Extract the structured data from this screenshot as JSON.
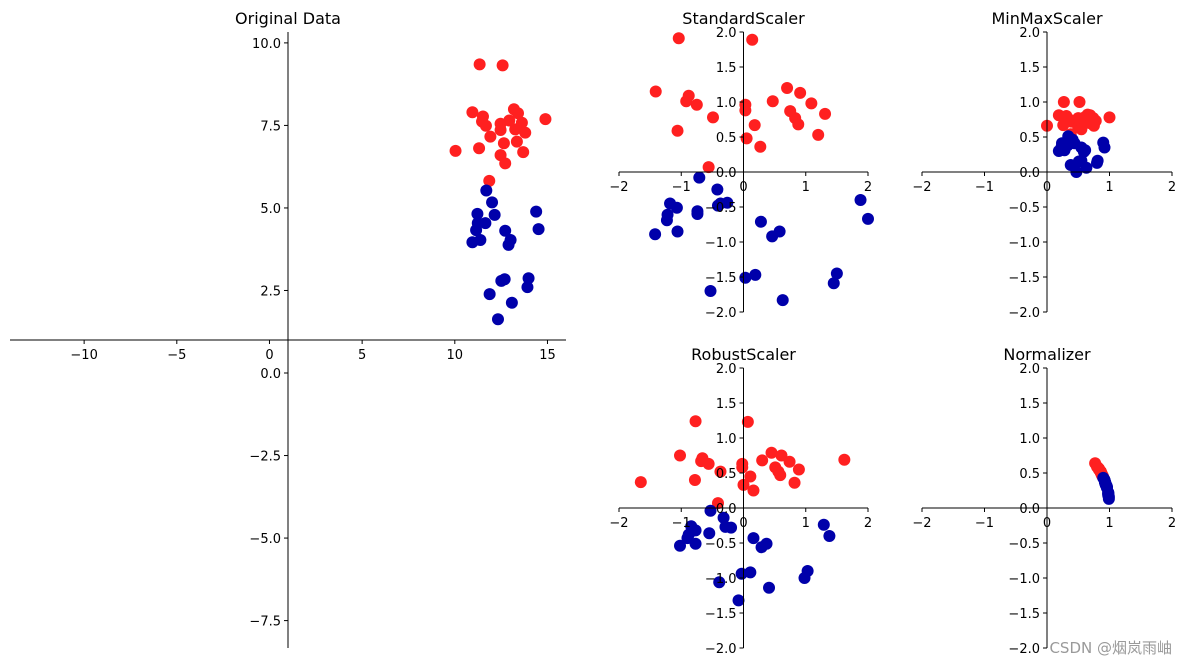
{
  "chart_data": [
    {
      "type": "scatter",
      "title": "Original Data",
      "xlim": [
        -14,
        16
      ],
      "ylim": [
        -8.33,
        10.33
      ],
      "xticks": [
        -10,
        -5,
        0,
        5,
        10,
        15
      ],
      "xtick_labels": [
        "−10",
        "−5",
        "0",
        "5",
        "10",
        "15"
      ],
      "yticks": [
        -7.5,
        -5,
        -2.5,
        0,
        2.5,
        5,
        7.5,
        10
      ],
      "ytick_labels": [
        "−7.5",
        "−5.0",
        "−2.5",
        "0.0",
        "2.5",
        "5.0",
        "7.5",
        "10.0"
      ],
      "spines": "center",
      "series": [
        {
          "color": "#ff2020",
          "x": [
            11.34,
            12.58,
            10.95,
            11.52,
            11.47,
            11.68,
            11.92,
            12.47,
            12.47,
            12.94,
            13.19,
            13.41,
            13.62,
            13.26,
            13.8,
            13.35,
            12.65,
            14.89,
            10.04,
            11.31,
            12.47,
            13.69,
            12.72,
            11.86
          ],
          "y": [
            9.35,
            9.32,
            7.9,
            7.77,
            7.62,
            7.49,
            7.16,
            7.55,
            7.36,
            7.65,
            7.99,
            7.87,
            7.58,
            7.38,
            7.28,
            7.01,
            6.96,
            7.69,
            6.73,
            6.81,
            6.6,
            6.69,
            6.35,
            5.82
          ]
        },
        {
          "color": "#0000aa",
          "x": [
            11.7,
            12.01,
            11.22,
            12.15,
            11.24,
            11.65,
            11.15,
            12.72,
            14.39,
            14.52,
            10.95,
            11.38,
            13.01,
            12.9,
            12.51,
            12.69,
            13.98,
            13.92,
            11.88,
            13.08,
            12.33
          ],
          "y": [
            5.53,
            5.17,
            4.82,
            4.79,
            4.54,
            4.54,
            4.33,
            4.31,
            4.89,
            4.36,
            3.96,
            4.03,
            4.03,
            3.88,
            2.79,
            2.84,
            2.87,
            2.6,
            2.39,
            2.13,
            1.63
          ]
        }
      ]
    },
    {
      "type": "scatter",
      "title": "StandardScaler",
      "xlim": [
        -2,
        2
      ],
      "ylim": [
        -2,
        2
      ],
      "xticks": [
        -2,
        -1,
        0,
        1,
        2
      ],
      "xtick_labels": [
        "−2",
        "−1",
        "0",
        "1",
        "2"
      ],
      "yticks": [
        -2,
        -1.5,
        -1,
        -0.5,
        0,
        0.5,
        1,
        1.5,
        2
      ],
      "ytick_labels": [
        "−2.0",
        "−1.5",
        "−1.0",
        "−0.5",
        "0.0",
        "0.5",
        "1.0",
        "1.5",
        "2.0"
      ],
      "spines": "center",
      "series": [
        {
          "color": "#ff2020",
          "x": [
            -1.04,
            0.14,
            -1.41,
            -0.88,
            -0.92,
            -0.75,
            -0.49,
            -1.06,
            0.03,
            0.03,
            0.18,
            0.05,
            0.27,
            0.47,
            0.7,
            0.91,
            0.75,
            0.83,
            0.88,
            1.09,
            1.31,
            1.2,
            -0.56
          ],
          "y": [
            1.91,
            1.89,
            1.15,
            1.09,
            1.01,
            0.96,
            0.78,
            0.59,
            0.96,
            0.88,
            0.67,
            0.48,
            0.36,
            1.01,
            1.2,
            1.13,
            0.87,
            0.77,
            0.68,
            0.98,
            0.83,
            0.53,
            0.07
          ]
        },
        {
          "color": "#0000aa",
          "x": [
            -0.71,
            -0.42,
            -1.18,
            -1.07,
            -1.22,
            -1.23,
            -0.74,
            -0.74,
            -1.42,
            -1.06,
            -0.37,
            -0.26,
            -0.41,
            0.28,
            0.46,
            0.58,
            1.88,
            2.0,
            0.03,
            0.19,
            -0.53,
            0.63,
            1.5,
            1.45
          ],
          "y": [
            -0.08,
            -0.25,
            -0.45,
            -0.51,
            -0.61,
            -0.69,
            -0.56,
            -0.6,
            -0.89,
            -0.85,
            -0.45,
            -0.44,
            -0.48,
            -0.71,
            -0.92,
            -0.85,
            -0.4,
            -0.67,
            -1.51,
            -1.47,
            -1.7,
            -1.83,
            -1.45,
            -1.59
          ]
        }
      ]
    },
    {
      "type": "scatter",
      "title": "MinMaxScaler",
      "xlim": [
        -2,
        2
      ],
      "ylim": [
        -2,
        2
      ],
      "xticks": [
        -2,
        -1,
        0,
        1,
        2
      ],
      "xtick_labels": [
        "−2",
        "−1",
        "0",
        "1",
        "2"
      ],
      "yticks": [
        -2,
        -1.5,
        -1,
        -0.5,
        0,
        0.5,
        1,
        1.5,
        2
      ],
      "ytick_labels": [
        "−2.0",
        "−1.5",
        "−1.0",
        "−0.5",
        "0.0",
        "0.5",
        "1.0",
        "1.5",
        "2.0"
      ],
      "spines": "center",
      "series": [
        {
          "color": "#ff2020",
          "x": [
            0.27,
            0.52,
            0.19,
            0.31,
            0.29,
            0.34,
            0.39,
            0.5,
            0.5,
            0.6,
            0.65,
            0.69,
            0.74,
            0.66,
            0.78,
            0.68,
            0.54,
            1.0,
            0.0,
            0.26,
            0.5,
            0.75,
            0.55,
            0.38
          ],
          "y": [
            1.0,
            1.0,
            0.81,
            0.8,
            0.78,
            0.76,
            0.72,
            0.77,
            0.74,
            0.78,
            0.82,
            0.81,
            0.77,
            0.74,
            0.73,
            0.7,
            0.69,
            0.78,
            0.66,
            0.67,
            0.64,
            0.66,
            0.61,
            0.54
          ]
        },
        {
          "color": "#0000aa",
          "x": [
            0.34,
            0.41,
            0.24,
            0.44,
            0.25,
            0.33,
            0.23,
            0.55,
            0.9,
            0.92,
            0.19,
            0.28,
            0.61,
            0.59,
            0.51,
            0.55,
            0.81,
            0.8,
            0.38,
            0.63,
            0.47
          ],
          "y": [
            0.51,
            0.46,
            0.41,
            0.41,
            0.38,
            0.38,
            0.35,
            0.35,
            0.42,
            0.35,
            0.3,
            0.31,
            0.31,
            0.29,
            0.15,
            0.16,
            0.16,
            0.13,
            0.1,
            0.06,
            0.0
          ]
        }
      ]
    },
    {
      "type": "scatter",
      "title": "RobustScaler",
      "xlim": [
        -2,
        2
      ],
      "ylim": [
        -2,
        2
      ],
      "xticks": [
        -2,
        -1,
        0,
        1,
        2
      ],
      "xtick_labels": [
        "−2",
        "−1",
        "0",
        "1",
        "2"
      ],
      "yticks": [
        -2,
        -1.5,
        -1,
        -0.5,
        0,
        0.5,
        1,
        1.5,
        2
      ],
      "ytick_labels": [
        "−2.0",
        "−1.5",
        "−1.0",
        "−0.5",
        "0.0",
        "0.5",
        "1.0",
        "1.5",
        "2.0"
      ],
      "spines": "center",
      "series": [
        {
          "color": "#ff2020",
          "x": [
            -0.77,
            0.07,
            -1.02,
            -0.66,
            -0.68,
            -0.56,
            -0.37,
            -0.78,
            -1.65,
            -0.02,
            -0.02,
            0.11,
            0.0,
            0.16,
            0.3,
            0.45,
            0.61,
            0.74,
            0.51,
            0.56,
            0.59,
            0.89,
            0.82,
            1.62,
            -0.41
          ],
          "y": [
            1.24,
            1.23,
            0.75,
            0.71,
            0.67,
            0.63,
            0.52,
            0.4,
            0.37,
            0.63,
            0.58,
            0.45,
            0.33,
            0.25,
            0.68,
            0.79,
            0.75,
            0.66,
            0.58,
            0.52,
            0.47,
            0.55,
            0.36,
            0.69,
            0.07
          ]
        },
        {
          "color": "#0000aa",
          "x": [
            -0.53,
            -0.32,
            -0.84,
            -0.77,
            -0.88,
            -0.9,
            -0.55,
            -1.02,
            -0.77,
            -0.29,
            -0.2,
            0.16,
            0.29,
            0.37,
            1.29,
            1.38,
            -0.03,
            0.11,
            -0.39,
            0.41,
            -0.08,
            0.98,
            1.03
          ],
          "y": [
            -0.04,
            -0.14,
            -0.26,
            -0.32,
            -0.38,
            -0.43,
            -0.36,
            -0.54,
            -0.51,
            -0.27,
            -0.28,
            -0.43,
            -0.56,
            -0.51,
            -0.24,
            -0.4,
            -0.94,
            -0.92,
            -1.06,
            -1.14,
            -1.32,
            -1.0,
            -0.9
          ]
        }
      ]
    },
    {
      "type": "scatter",
      "title": "Normalizer",
      "xlim": [
        -2,
        2
      ],
      "ylim": [
        -2,
        2
      ],
      "xticks": [
        -2,
        -1,
        0,
        1,
        2
      ],
      "xtick_labels": [
        "−2",
        "−1",
        "0",
        "1",
        "2"
      ],
      "yticks": [
        -2,
        -1.5,
        -1,
        -0.5,
        0,
        0.5,
        1,
        1.5,
        2
      ],
      "ytick_labels": [
        "−2.0",
        "−1.5",
        "−1.0",
        "−0.5",
        "0.0",
        "0.5",
        "1.0",
        "1.5",
        "2.0"
      ],
      "spines": "center",
      "series": [
        {
          "color": "#ff2020",
          "x": [
            0.77,
            0.8,
            0.81,
            0.83,
            0.83,
            0.84,
            0.86,
            0.86,
            0.86,
            0.86,
            0.86,
            0.86,
            0.87,
            0.87,
            0.88,
            0.88,
            0.88,
            0.89,
            0.83,
            0.86,
            0.88,
            0.9,
            0.89,
            0.9
          ],
          "y": [
            0.64,
            0.59,
            0.58,
            0.56,
            0.55,
            0.54,
            0.52,
            0.52,
            0.51,
            0.51,
            0.52,
            0.51,
            0.49,
            0.49,
            0.47,
            0.47,
            0.48,
            0.46,
            0.56,
            0.52,
            0.47,
            0.44,
            0.45,
            0.44
          ]
        },
        {
          "color": "#0000aa",
          "x": [
            0.9,
            0.92,
            0.92,
            0.93,
            0.93,
            0.93,
            0.93,
            0.95,
            0.95,
            0.96,
            0.94,
            0.94,
            0.96,
            0.96,
            0.98,
            0.98,
            0.98,
            0.98,
            0.98,
            0.99,
            0.99
          ],
          "y": [
            0.43,
            0.4,
            0.4,
            0.37,
            0.37,
            0.36,
            0.36,
            0.32,
            0.32,
            0.29,
            0.34,
            0.33,
            0.3,
            0.29,
            0.22,
            0.22,
            0.2,
            0.18,
            0.2,
            0.16,
            0.13
          ]
        }
      ]
    }
  ],
  "watermark": "CSDN @烟岚雨岫"
}
